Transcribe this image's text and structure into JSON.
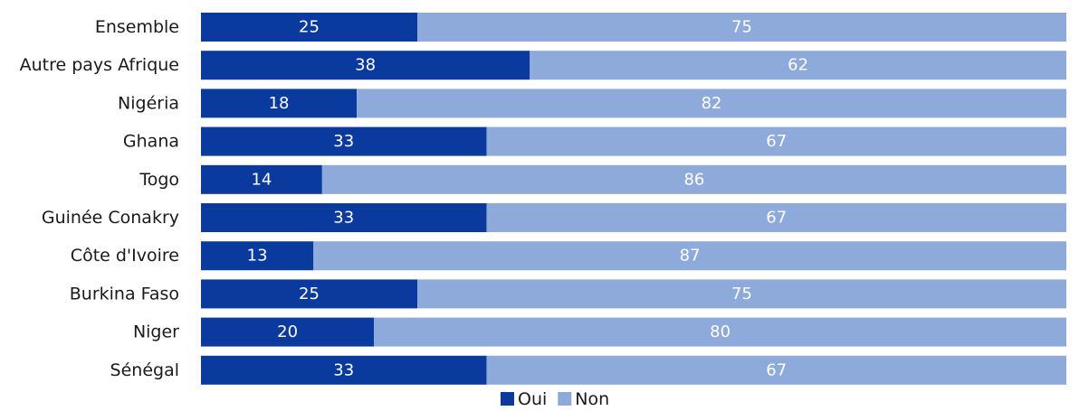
{
  "chart_data": {
    "type": "bar",
    "orientation": "horizontal",
    "stacked": true,
    "categories": [
      "Ensemble",
      "Autre pays Afrique",
      "Nigéria",
      "Ghana",
      "Togo",
      "Guinée Conakry",
      "Côte d'Ivoire",
      "Burkina Faso",
      "Niger",
      "Sénégal"
    ],
    "series": [
      {
        "name": "Oui",
        "color": "#0a3a9e",
        "values": [
          25,
          38,
          18,
          33,
          14,
          33,
          13,
          25,
          20,
          33
        ]
      },
      {
        "name": "Non",
        "color": "#8eaadb",
        "values": [
          75,
          62,
          82,
          67,
          86,
          67,
          87,
          75,
          80,
          67
        ]
      }
    ],
    "xlim": [
      0,
      100
    ],
    "grid": false,
    "legend_position": "bottom-center"
  }
}
